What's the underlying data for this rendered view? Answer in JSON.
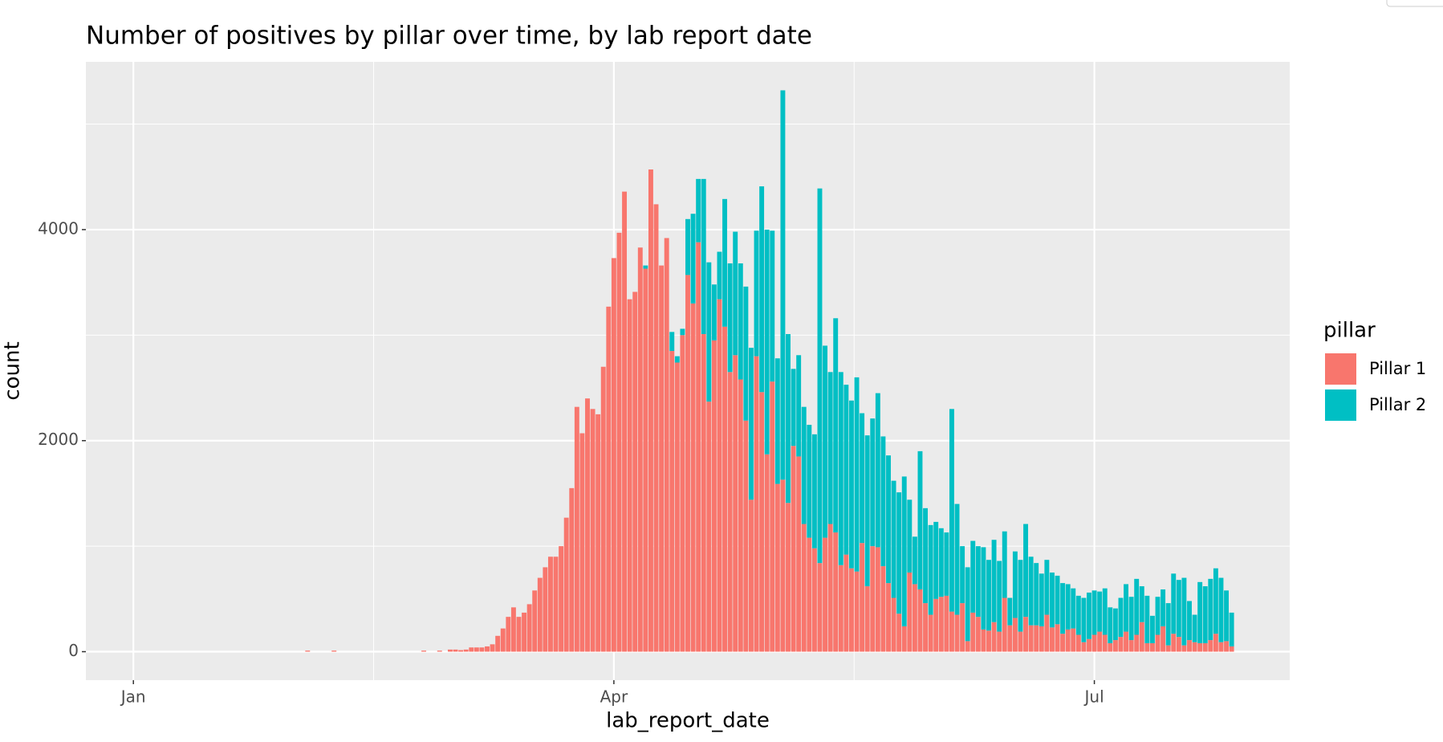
{
  "chart_data": {
    "type": "stacked_bar",
    "title": "Number of positives by pillar over time, by lab report date",
    "x_label": "lab_report_date",
    "y_label": "count",
    "legend_title": "pillar",
    "x": [
      33,
      38,
      55,
      58,
      60,
      61,
      62,
      63,
      64,
      65,
      66,
      67,
      68,
      69,
      70,
      71,
      72,
      73,
      74,
      75,
      76,
      77,
      78,
      79,
      80,
      81,
      82,
      83,
      84,
      85,
      86,
      87,
      88,
      89,
      90,
      91,
      92,
      93,
      94,
      95,
      96,
      97,
      98,
      99,
      100,
      101,
      102,
      103,
      104,
      105,
      106,
      107,
      108,
      109,
      110,
      111,
      112,
      113,
      114,
      115,
      116,
      117,
      118,
      119,
      120,
      121,
      122,
      123,
      124,
      125,
      126,
      127,
      128,
      129,
      130,
      131,
      132,
      133,
      134,
      135,
      136,
      137,
      138,
      139,
      140,
      141,
      142,
      143,
      144,
      145,
      146,
      147,
      148,
      149,
      150,
      151,
      152,
      153,
      154,
      155,
      156,
      157,
      158,
      159,
      160,
      161,
      162,
      163,
      164,
      165,
      166,
      167,
      168,
      169,
      170,
      171,
      172,
      173,
      174,
      175,
      176,
      177,
      178,
      179,
      180,
      181,
      182,
      183,
      184,
      185,
      186,
      187,
      188,
      189,
      190,
      191,
      192,
      193,
      194,
      195,
      196,
      197,
      198,
      199,
      200,
      201,
      202,
      203,
      204,
      205,
      206,
      207,
      208
    ],
    "series": [
      {
        "name": "Pillar 1",
        "color": "#F8766D",
        "values": [
          10,
          10,
          10,
          10,
          20,
          20,
          15,
          20,
          40,
          40,
          40,
          50,
          70,
          150,
          220,
          330,
          420,
          330,
          370,
          450,
          580,
          700,
          800,
          900,
          900,
          1000,
          1270,
          1550,
          2320,
          2070,
          2400,
          2300,
          2250,
          2700,
          3270,
          3730,
          3970,
          4360,
          3340,
          3410,
          3830,
          3630,
          4570,
          4240,
          3660,
          3920,
          2850,
          2740,
          3000,
          3570,
          3300,
          3880,
          3010,
          2370,
          2950,
          3340,
          3080,
          2650,
          2810,
          2580,
          2190,
          1440,
          2800,
          2460,
          1870,
          2560,
          1590,
          1630,
          1410,
          1950,
          1850,
          1210,
          1080,
          980,
          840,
          1080,
          1210,
          1130,
          820,
          920,
          790,
          760,
          1030,
          620,
          1000,
          990,
          810,
          650,
          510,
          360,
          240,
          750,
          640,
          590,
          460,
          350,
          500,
          520,
          530,
          380,
          350,
          460,
          100,
          370,
          330,
          210,
          200,
          280,
          190,
          510,
          250,
          320,
          190,
          330,
          250,
          250,
          240,
          350,
          230,
          260,
          170,
          210,
          220,
          160,
          90,
          120,
          160,
          190,
          160,
          80,
          110,
          140,
          190,
          110,
          160,
          280,
          80,
          80,
          160,
          240,
          60,
          170,
          140,
          60,
          110,
          90,
          80,
          80,
          110,
          170,
          90,
          100,
          50
        ]
      },
      {
        "name": "Pillar 2",
        "color": "#00BFC4",
        "values": [
          0,
          0,
          0,
          0,
          0,
          0,
          0,
          0,
          0,
          0,
          0,
          0,
          0,
          0,
          0,
          0,
          0,
          0,
          0,
          0,
          0,
          0,
          0,
          0,
          0,
          0,
          0,
          0,
          0,
          0,
          0,
          0,
          0,
          0,
          0,
          0,
          0,
          0,
          0,
          0,
          0,
          30,
          0,
          0,
          0,
          0,
          180,
          60,
          60,
          530,
          850,
          600,
          1470,
          1320,
          530,
          450,
          1210,
          1030,
          1170,
          1100,
          1270,
          1440,
          1190,
          1950,
          2130,
          1430,
          1190,
          3690,
          1600,
          730,
          960,
          1110,
          1070,
          1080,
          3550,
          1820,
          1440,
          2030,
          1830,
          1610,
          1590,
          1840,
          1230,
          1430,
          1210,
          1460,
          1230,
          1210,
          1110,
          1150,
          1420,
          690,
          450,
          1310,
          900,
          850,
          730,
          650,
          600,
          1920,
          1050,
          540,
          700,
          680,
          670,
          780,
          670,
          780,
          670,
          630,
          260,
          630,
          680,
          880,
          650,
          590,
          500,
          520,
          520,
          460,
          480,
          430,
          380,
          370,
          420,
          440,
          420,
          380,
          440,
          340,
          300,
          370,
          450,
          410,
          530,
          340,
          450,
          260,
          360,
          350,
          400,
          570,
          540,
          640,
          370,
          260,
          580,
          540,
          580,
          620,
          610,
          480,
          320
        ]
      }
    ],
    "xlim": [
      -9,
      219
    ],
    "xticks": [
      {
        "value": 0,
        "label": "Jan"
      },
      {
        "value": 91,
        "label": "Apr"
      },
      {
        "value": 182,
        "label": "Jul"
      }
    ],
    "minor_xticks": [
      45.5,
      136.5
    ],
    "ylim": [
      -270,
      5590
    ],
    "yticks": [
      0,
      2000,
      4000
    ],
    "minor_yticks": [
      1000,
      3000,
      5000
    ],
    "grid": true
  }
}
